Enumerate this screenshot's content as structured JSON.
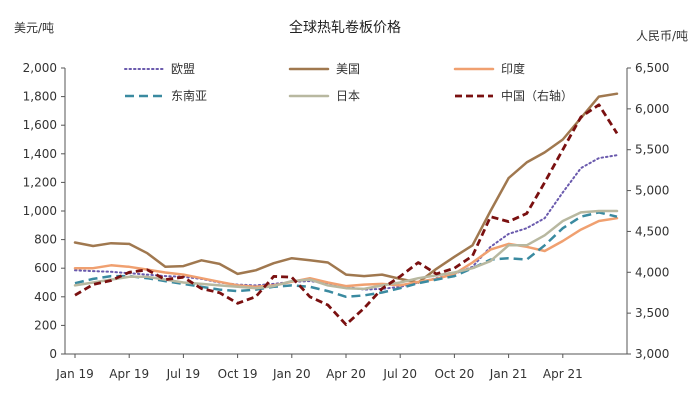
{
  "chart_data": {
    "type": "line",
    "title": "全球热轧卷板价格",
    "left_unit": "美元/吨",
    "right_unit": "人民币/吨",
    "y_left": {
      "min": 0,
      "max": 2000,
      "step": 200,
      "tick_labels": [
        "0",
        "200",
        "400",
        "600",
        "800",
        "1,000",
        "1,200",
        "1,400",
        "1,600",
        "1,800",
        "2,000"
      ]
    },
    "y_right": {
      "min": 3000,
      "max": 6500,
      "step": 500,
      "tick_labels": [
        "3,000",
        "3,500",
        "4,000",
        "4,500",
        "5,000",
        "5,500",
        "6,000",
        "6,500"
      ]
    },
    "x_labels": [
      "Jan 19",
      "Apr 19",
      "Jul 19",
      "Oct 19",
      "Jan 20",
      "Apr 20",
      "Jul 20",
      "Oct 20",
      "Jan 21",
      "Apr 21"
    ],
    "x_label_months": [
      0,
      3,
      6,
      9,
      12,
      15,
      18,
      21,
      24,
      27
    ],
    "x_months": [
      0,
      1,
      2,
      3,
      4,
      5,
      6,
      7,
      8,
      9,
      10,
      11,
      12,
      13,
      14,
      15,
      16,
      17,
      18,
      19,
      20,
      21,
      22,
      23,
      24,
      25,
      26,
      27,
      28,
      29,
      30
    ],
    "grid": false,
    "legend_position": "top",
    "series": [
      {
        "name": "欧盟",
        "axis": "left",
        "color": "#6a5aad",
        "style": "dotted",
        "values": [
          585,
          580,
          575,
          565,
          555,
          545,
          540,
          525,
          500,
          485,
          480,
          490,
          505,
          510,
          495,
          470,
          450,
          455,
          470,
          500,
          530,
          560,
          610,
          750,
          840,
          880,
          950,
          1130,
          1300,
          1370,
          1390
        ]
      },
      {
        "name": "美国",
        "axis": "left",
        "color": "#a0784f",
        "style": "solid",
        "values": [
          780,
          755,
          775,
          770,
          705,
          610,
          615,
          655,
          630,
          560,
          585,
          635,
          670,
          655,
          640,
          555,
          545,
          555,
          525,
          500,
          595,
          680,
          760,
          1000,
          1230,
          1340,
          1410,
          1500,
          1650,
          1800,
          1820
        ]
      },
      {
        "name": "印度",
        "axis": "left",
        "color": "#f0a070",
        "style": "solid",
        "values": [
          600,
          600,
          620,
          610,
          590,
          570,
          555,
          530,
          505,
          480,
          470,
          480,
          505,
          530,
          500,
          475,
          485,
          490,
          480,
          505,
          525,
          560,
          640,
          730,
          770,
          750,
          720,
          790,
          870,
          930,
          950
        ]
      },
      {
        "name": "东南亚",
        "axis": "left",
        "color": "#3a8aa0",
        "style": "dashed",
        "values": [
          495,
          525,
          545,
          545,
          530,
          510,
          490,
          470,
          450,
          440,
          450,
          470,
          480,
          470,
          440,
          400,
          410,
          430,
          460,
          495,
          520,
          545,
          600,
          660,
          670,
          660,
          760,
          880,
          960,
          990,
          960
        ]
      },
      {
        "name": "日本",
        "axis": "left",
        "color": "#b8b8a0",
        "style": "solid",
        "values": [
          480,
          500,
          520,
          540,
          540,
          520,
          500,
          490,
          480,
          470,
          460,
          475,
          510,
          520,
          480,
          460,
          455,
          480,
          500,
          530,
          550,
          570,
          600,
          650,
          760,
          760,
          830,
          930,
          990,
          1000,
          1000
        ]
      },
      {
        "name": "中国（右轴）",
        "axis": "right",
        "color": "#7a1010",
        "style": "dashed-thick",
        "values": [
          3720,
          3850,
          3900,
          4000,
          4030,
          3910,
          3940,
          3800,
          3750,
          3620,
          3700,
          3950,
          3940,
          3700,
          3600,
          3360,
          3560,
          3800,
          3950,
          4120,
          3980,
          4050,
          4200,
          4680,
          4620,
          4720,
          5100,
          5500,
          5900,
          6050,
          5700
        ]
      }
    ]
  }
}
